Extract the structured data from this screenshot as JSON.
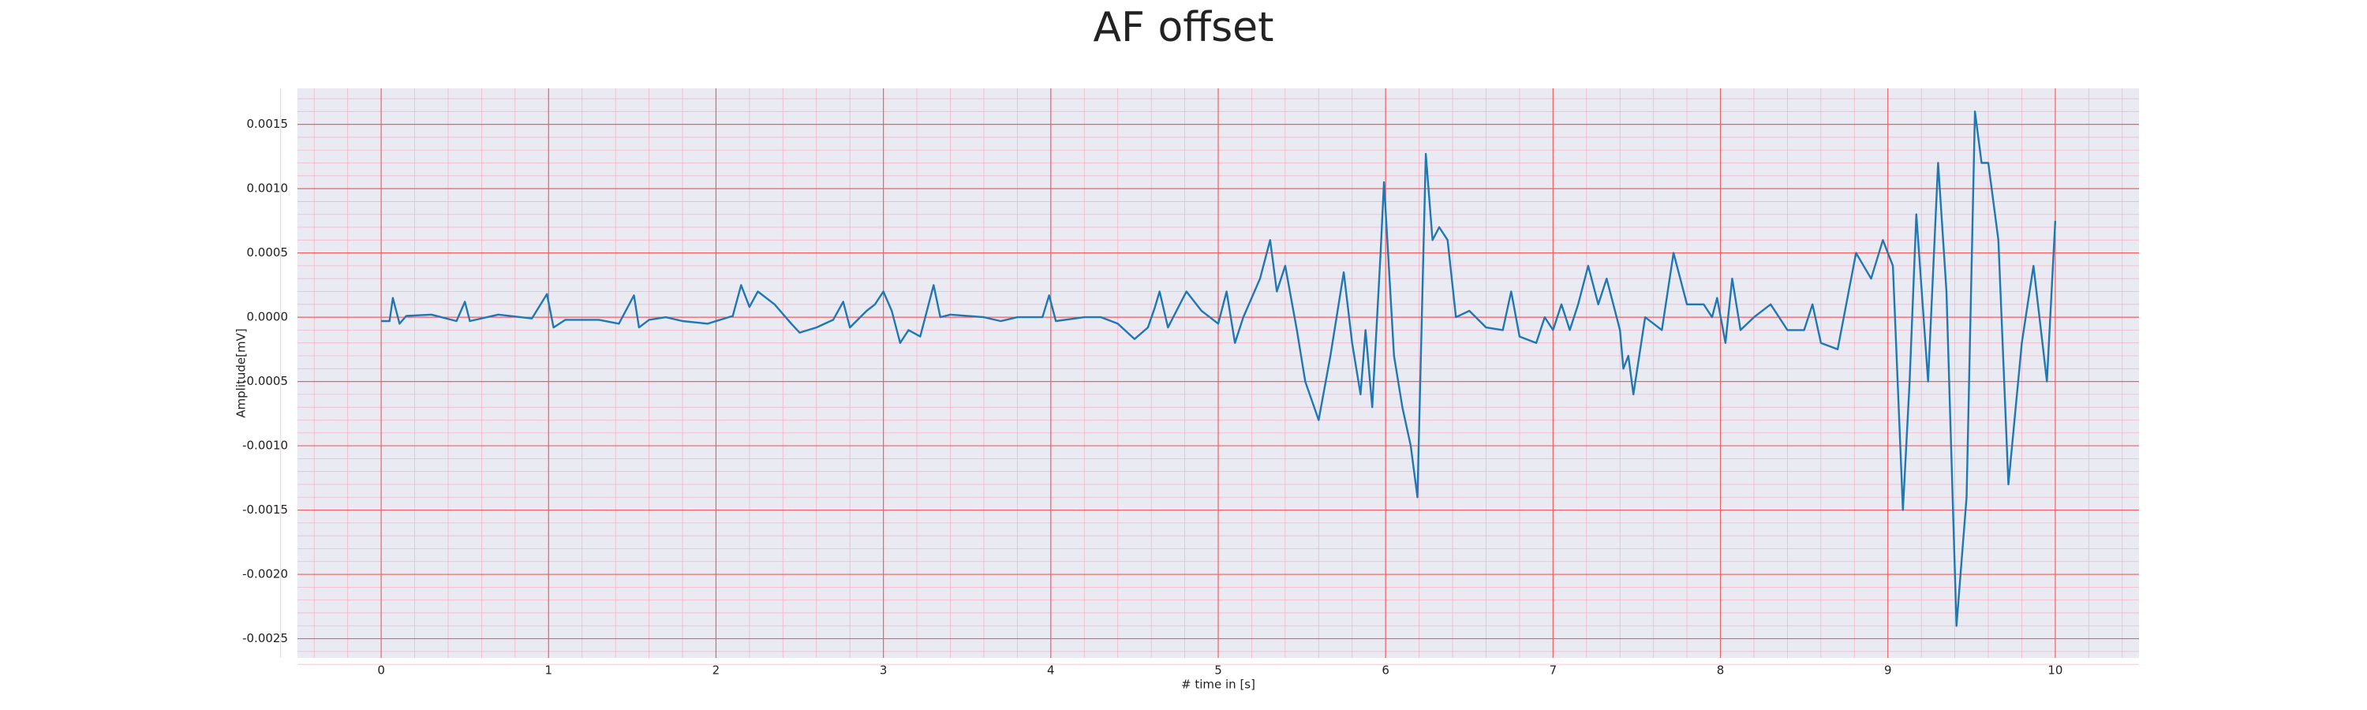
{
  "chart_data": {
    "type": "line",
    "title": "AF offset",
    "xlabel": "# time in [s]",
    "ylabel": "Amplitude[mV]",
    "x": [
      0,
      0.05,
      0.07,
      0.11,
      0.15,
      0.3,
      0.45,
      0.5,
      0.53,
      0.7,
      0.9,
      0.99,
      1.03,
      1.1,
      1.3,
      1.42,
      1.51,
      1.54,
      1.6,
      1.7,
      1.8,
      1.95,
      2.1,
      2.15,
      2.2,
      2.25,
      2.35,
      2.45,
      2.5,
      2.6,
      2.7,
      2.76,
      2.8,
      2.9,
      2.95,
      3.0,
      3.05,
      3.1,
      3.15,
      3.22,
      3.3,
      3.34,
      3.4,
      3.6,
      3.7,
      3.8,
      3.95,
      3.99,
      4.03,
      4.2,
      4.3,
      4.4,
      4.5,
      4.58,
      4.62,
      4.65,
      4.7,
      4.81,
      4.9,
      5.0,
      5.05,
      5.1,
      5.15,
      5.25,
      5.31,
      5.35,
      5.4,
      5.47,
      5.52,
      5.6,
      5.67,
      5.75,
      5.8,
      5.85,
      5.88,
      5.92,
      5.97,
      5.99,
      6.05,
      6.1,
      6.15,
      6.19,
      6.24,
      6.28,
      6.32,
      6.37,
      6.42,
      6.5,
      6.6,
      6.7,
      6.75,
      6.8,
      6.9,
      6.95,
      7.0,
      7.05,
      7.1,
      7.15,
      7.21,
      7.27,
      7.32,
      7.4,
      7.42,
      7.45,
      7.48,
      7.55,
      7.65,
      7.72,
      7.8,
      7.9,
      7.95,
      7.98,
      8.03,
      8.07,
      8.12,
      8.2,
      8.3,
      8.4,
      8.5,
      8.55,
      8.6,
      8.7,
      8.81,
      8.9,
      8.97,
      9.03,
      9.09,
      9.13,
      9.17,
      9.24,
      9.3,
      9.35,
      9.41,
      9.47,
      9.52,
      9.56,
      9.6,
      9.66,
      9.72,
      9.8,
      9.87,
      9.95,
      10.0
    ],
    "series": [
      {
        "name": "AF offset",
        "color": "#1f77b4",
        "values": [
          -3e-05,
          -3e-05,
          0.00015,
          -5e-05,
          1e-05,
          2e-05,
          -3e-05,
          0.00012,
          -3e-05,
          2e-05,
          -1e-05,
          0.00018,
          -8e-05,
          -2e-05,
          -2e-05,
          -5e-05,
          0.00017,
          -8e-05,
          -2e-05,
          0.0,
          -3e-05,
          -5e-05,
          1e-05,
          0.00025,
          8e-05,
          0.0002,
          0.0001,
          -5e-05,
          -0.00012,
          -8e-05,
          -2e-05,
          0.00012,
          -8e-05,
          5e-05,
          0.0001,
          0.0002,
          5e-05,
          -0.0002,
          -0.0001,
          -0.00015,
          0.00025,
          0.0,
          2e-05,
          0.0,
          -3e-05,
          0.0,
          0.0,
          0.00017,
          -3e-05,
          0.0,
          0.0,
          -5e-05,
          -0.00017,
          -8e-05,
          7e-05,
          0.0002,
          -8e-05,
          0.0002,
          5e-05,
          -5e-05,
          0.0002,
          -0.0002,
          0.0,
          0.0003,
          0.0006,
          0.0002,
          0.0004,
          -0.0001,
          -0.0005,
          -0.0008,
          -0.0003,
          0.00035,
          -0.0002,
          -0.0006,
          -0.0001,
          -0.0007,
          0.0005,
          0.00105,
          -0.0003,
          -0.0007,
          -0.001,
          -0.0014,
          0.00127,
          0.0006,
          0.0007,
          0.0006,
          0.0,
          5e-05,
          -8e-05,
          -0.0001,
          0.0002,
          -0.00015,
          -0.0002,
          0.0,
          -0.0001,
          0.0001,
          -0.0001,
          0.0001,
          0.0004,
          0.0001,
          0.0003,
          -0.0001,
          -0.0004,
          -0.0003,
          -0.0006,
          0.0,
          -0.0001,
          0.0005,
          0.0001,
          0.0001,
          0.0,
          0.00015,
          -0.0002,
          0.0003,
          -0.0001,
          0.0,
          0.0001,
          -0.0001,
          -0.0001,
          0.0001,
          -0.0002,
          -0.00025,
          0.0005,
          0.0003,
          0.0006,
          0.0004,
          -0.0015,
          -0.0005,
          0.0008,
          -0.0005,
          0.0012,
          0.0002,
          -0.0024,
          -0.0014,
          0.0016,
          0.0012,
          0.0012,
          0.0006,
          -0.0013,
          -0.0002,
          0.0004,
          -0.0005,
          0.00075
        ]
      }
    ],
    "xlim": [
      -0.5,
      10.5
    ],
    "xticks": [
      0,
      1,
      2,
      3,
      4,
      5,
      6,
      7,
      8,
      9,
      10
    ],
    "ylim": [
      -0.00265,
      0.00178
    ],
    "yticks": [
      -0.0025,
      {
        "value": -0.002,
        "label": "-0.0020"
      },
      -0.0015,
      {
        "value": -0.001,
        "label": "-0.0010"
      },
      -0.0005,
      {
        "value": 0,
        "label": "0.0000"
      },
      0.0005,
      {
        "value": 0.001,
        "label": "0.0010"
      },
      0.0015
    ],
    "grid": true,
    "minor_grid": true
  }
}
